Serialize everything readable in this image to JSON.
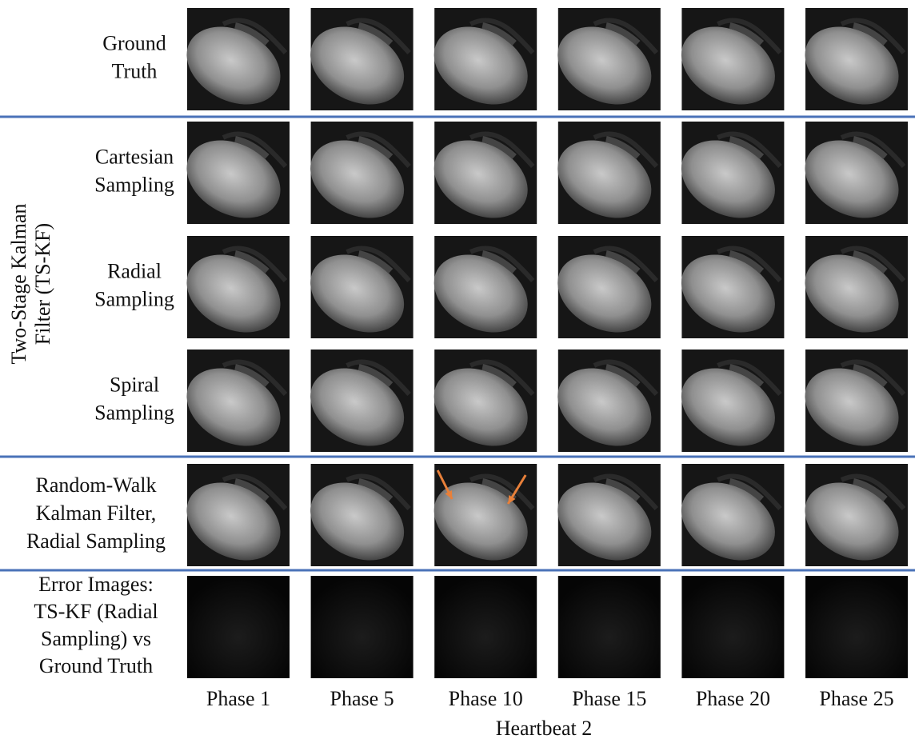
{
  "group_label": [
    "Two-Stage Kalman",
    "Filter (TS-KF)"
  ],
  "rows": [
    {
      "label": [
        "Ground",
        "Truth"
      ]
    },
    {
      "label": [
        "Cartesian",
        "Sampling"
      ]
    },
    {
      "label": [
        "Radial",
        "Sampling"
      ]
    },
    {
      "label": [
        "Spiral",
        "Sampling"
      ]
    },
    {
      "label": [
        "Random-Walk",
        "Kalman Filter,",
        "Radial Sampling"
      ]
    },
    {
      "label": [
        "Error Images:",
        "TS-KF (Radial",
        "Sampling) vs",
        "Ground Truth"
      ]
    }
  ],
  "columns": [
    "Phase 1",
    "Phase 5",
    "Phase 10",
    "Phase 15",
    "Phase 20",
    "Phase 25"
  ],
  "footer": "Heartbeat 2"
}
